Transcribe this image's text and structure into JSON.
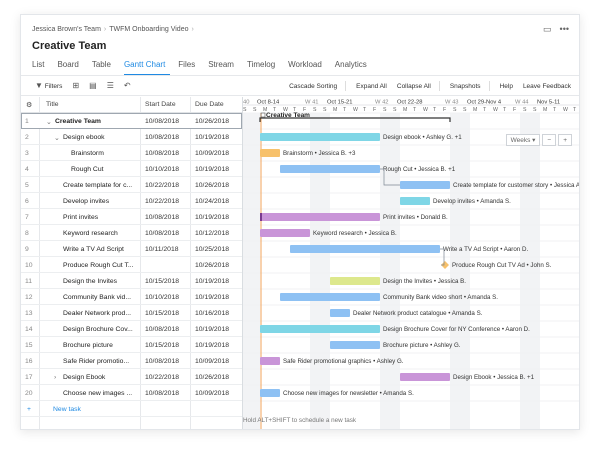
{
  "breadcrumb": {
    "team": "Jessica Brown's Team",
    "project": "TWFM Onboarding Video"
  },
  "page_title": "Creative Team",
  "tabs": [
    "List",
    "Board",
    "Table",
    "Gantt Chart",
    "Files",
    "Stream",
    "Timelog",
    "Workload",
    "Analytics"
  ],
  "active_tab": "Gantt Chart",
  "toolbar": {
    "filters": "Filters",
    "cascade_sorting": "Cascade Sorting",
    "expand_all": "Expand All",
    "collapse_all": "Collapse All",
    "snapshots": "Snapshots",
    "help": "Help",
    "leave_feedback": "Leave Feedback"
  },
  "columns": {
    "title": "Title",
    "start": "Start Date",
    "due": "Due Date"
  },
  "rows": [
    {
      "n": "1",
      "title": "Creative Team",
      "start": "10/08/2018",
      "due": "10/26/2018",
      "indent": 0,
      "caret": "down",
      "bold": true
    },
    {
      "n": "2",
      "title": "Design ebook",
      "start": "10/08/2018",
      "due": "10/19/2018",
      "indent": 1,
      "caret": "down",
      "bold": false
    },
    {
      "n": "3",
      "title": "Brainstorm",
      "start": "10/08/2018",
      "due": "10/09/2018",
      "indent": 2,
      "caret": "",
      "bold": false
    },
    {
      "n": "4",
      "title": "Rough Cut",
      "start": "10/10/2018",
      "due": "10/19/2018",
      "indent": 2,
      "caret": "",
      "bold": false
    },
    {
      "n": "5",
      "title": "Create template for c...",
      "start": "10/22/2018",
      "due": "10/26/2018",
      "indent": 1,
      "caret": "",
      "bold": false
    },
    {
      "n": "6",
      "title": "Develop invites",
      "start": "10/22/2018",
      "due": "10/24/2018",
      "indent": 1,
      "caret": "",
      "bold": false
    },
    {
      "n": "7",
      "title": "Print invites",
      "start": "10/08/2018",
      "due": "10/19/2018",
      "indent": 1,
      "caret": "",
      "bold": false
    },
    {
      "n": "8",
      "title": "Keyword research",
      "start": "10/08/2018",
      "due": "10/12/2018",
      "indent": 1,
      "caret": "",
      "bold": false
    },
    {
      "n": "9",
      "title": "Write a TV Ad Script",
      "start": "10/11/2018",
      "due": "10/25/2018",
      "indent": 1,
      "caret": "",
      "bold": false
    },
    {
      "n": "10",
      "title": "Produce Rough Cut T...",
      "start": "",
      "due": "10/26/2018",
      "indent": 1,
      "caret": "",
      "bold": false
    },
    {
      "n": "11",
      "title": "Design the Invites",
      "start": "10/15/2018",
      "due": "10/19/2018",
      "indent": 1,
      "caret": "",
      "bold": false
    },
    {
      "n": "12",
      "title": "Community Bank vid...",
      "start": "10/10/2018",
      "due": "10/19/2018",
      "indent": 1,
      "caret": "",
      "bold": false
    },
    {
      "n": "13",
      "title": "Dealer Network prod...",
      "start": "10/15/2018",
      "due": "10/16/2018",
      "indent": 1,
      "caret": "",
      "bold": false
    },
    {
      "n": "14",
      "title": "Design Brochure Cov...",
      "start": "10/08/2018",
      "due": "10/19/2018",
      "indent": 1,
      "caret": "",
      "bold": false
    },
    {
      "n": "15",
      "title": "Brochure picture",
      "start": "10/15/2018",
      "due": "10/19/2018",
      "indent": 1,
      "caret": "",
      "bold": false
    },
    {
      "n": "16",
      "title": "Safe Rider promotio...",
      "start": "10/08/2018",
      "due": "10/09/2018",
      "indent": 1,
      "caret": "",
      "bold": false
    },
    {
      "n": "17",
      "title": "Design Ebook",
      "start": "10/22/2018",
      "due": "10/26/2018",
      "indent": 1,
      "caret": "right",
      "bold": false
    },
    {
      "n": "20",
      "title": "Choose new images ...",
      "start": "10/08/2018",
      "due": "10/09/2018",
      "indent": 1,
      "caret": "",
      "bold": false
    }
  ],
  "new_task": "New task",
  "timeline": {
    "weeks": [
      {
        "label": "40",
        "range": ""
      },
      {
        "label": "",
        "range": "Oct 8-14"
      },
      {
        "label": "W 41",
        "range": ""
      },
      {
        "label": "",
        "range": "Oct 15-21"
      },
      {
        "label": "W 42",
        "range": ""
      },
      {
        "label": "",
        "range": "Oct 22-28"
      },
      {
        "label": "W 43",
        "range": ""
      },
      {
        "label": "",
        "range": "Oct 29-Nov 4"
      },
      {
        "label": "W 44",
        "range": ""
      },
      {
        "label": "",
        "range": "Nov 5-11"
      }
    ],
    "day_letters": [
      "S",
      "M",
      "T",
      "W",
      "T",
      "F",
      "S"
    ],
    "scale_button": "Weeks",
    "zoom_out": "−",
    "zoom_in": "+",
    "hint": "Hold ALT+SHIFT to schedule a new task"
  },
  "bars": [
    {
      "row": 0,
      "label": "Creative Team",
      "type": "summary"
    },
    {
      "row": 1,
      "label": "Design ebook • Ashley G. +1",
      "color": "#7fd6e6"
    },
    {
      "row": 2,
      "label": "Brainstorm • Jessica B. +3",
      "color": "#f7c16b"
    },
    {
      "row": 3,
      "label": "Rough Cut • Jessica B. +1",
      "color": "#8ec1f3"
    },
    {
      "row": 4,
      "label": "Create template for customer story • Jessica A.",
      "color": "#8ec1f3"
    },
    {
      "row": 5,
      "label": "Develop invites • Amanda S.",
      "color": "#7fd6e6"
    },
    {
      "row": 6,
      "label": "Print invites • Donald B.",
      "color": "#c995d8"
    },
    {
      "row": 7,
      "label": "Keyword research • Jessica B.",
      "color": "#c995d8"
    },
    {
      "row": 8,
      "label": "Write a TV Ad Script • Aaron D.",
      "color": "#8ec1f3"
    },
    {
      "row": 9,
      "label": "Produce Rough Cut TV Ad • John S.",
      "color": "#f7c16b"
    },
    {
      "row": 10,
      "label": "Design the Invites • Jessica B.",
      "color": "#dde88d"
    },
    {
      "row": 11,
      "label": "Community Bank video short • Amanda S.",
      "color": "#8ec1f3"
    },
    {
      "row": 12,
      "label": "Dealer Network product catalogue • Amanda S.",
      "color": "#8ec1f3"
    },
    {
      "row": 13,
      "label": "Design Brochure Cover for NY Conference • Aaron D.",
      "color": "#7fd6e6"
    },
    {
      "row": 14,
      "label": "Brochure picture • Ashley G.",
      "color": "#8ec1f3"
    },
    {
      "row": 15,
      "label": "Safe Rider promotional graphics • Ashley G.",
      "color": "#c995d8"
    },
    {
      "row": 16,
      "label": "Design Ebook • Jessica B. +1",
      "color": "#c995d8"
    },
    {
      "row": 17,
      "label": "Choose new images for newsletter • Amanda S.",
      "color": "#8ec1f3"
    }
  ]
}
